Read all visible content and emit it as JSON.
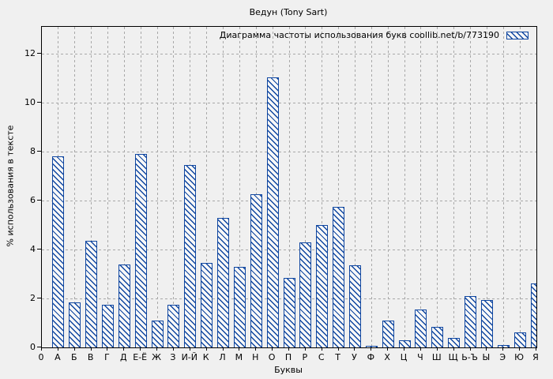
{
  "title": "Ведун (Tony Sart)",
  "legend_label": "Диаграмма частоты использования букв coollib.net/b/773190",
  "x_axis_title": "Буквы",
  "y_axis_title": "% использования в тексте",
  "origin_label": "0",
  "colors": {
    "background": "#f0f0f0",
    "bar_blue": "#0f46a0",
    "bar_fill": "#f8f8f8",
    "grid": "#a8a8a8",
    "plot_border": "#000000",
    "text": "#000000"
  },
  "chart_data": {
    "type": "bar",
    "title": "Ведун (Tony Sart)",
    "legend": "Диаграмма частоты использования букв coollib.net/b/773190",
    "legend_position": "top-right-inside",
    "xlabel": "Буквы",
    "ylabel": "% использования в тексте",
    "grid": true,
    "hatch": "diagonal-down",
    "categories": [
      "А",
      "Б",
      "В",
      "Г",
      "Д",
      "Е-Ё",
      "Ж",
      "З",
      "И-Й",
      "К",
      "Л",
      "М",
      "Н",
      "О",
      "П",
      "Р",
      "С",
      "Т",
      "У",
      "Ф",
      "Х",
      "Ц",
      "Ч",
      "Ш",
      "Щ",
      "Ь-Ъ",
      "Ы",
      "Э",
      "Ю",
      "Я"
    ],
    "values": [
      7.8,
      1.85,
      4.35,
      1.75,
      3.4,
      7.9,
      1.1,
      1.75,
      7.45,
      3.45,
      5.3,
      3.3,
      6.25,
      11.05,
      2.85,
      4.3,
      5.0,
      5.75,
      3.35,
      0.05,
      1.1,
      0.3,
      1.55,
      0.85,
      0.38,
      2.1,
      1.95,
      0.1,
      0.6,
      2.6
    ],
    "y_ticks": [
      0,
      2,
      4,
      6,
      8,
      10,
      12
    ],
    "ylim": [
      0,
      13.1
    ],
    "x_origin_tick_label": "0"
  }
}
